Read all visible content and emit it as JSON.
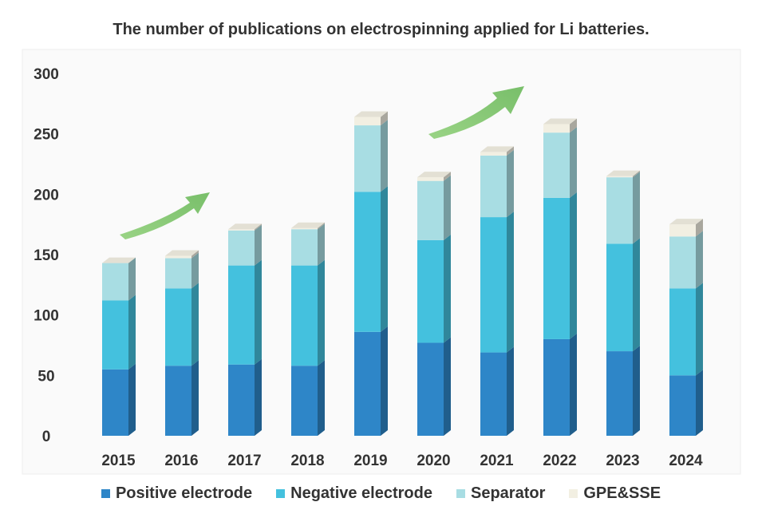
{
  "chart_data": {
    "type": "bar",
    "stacked": true,
    "title": "The number of publications on electrospinning applied for Li batteries.",
    "xlabel": "",
    "ylabel": "",
    "ylim": [
      0,
      300
    ],
    "yticks": [
      "0",
      "50",
      "100",
      "150",
      "200",
      "250",
      "300"
    ],
    "categories": [
      "2015",
      "2016",
      "2017",
      "2018",
      "2019",
      "2020",
      "2021",
      "2022",
      "2023",
      "2024"
    ],
    "series": [
      {
        "name": "Positive electrode",
        "color": "#2e86c8",
        "values": [
          55,
          58,
          59,
          58,
          86,
          77,
          69,
          80,
          70,
          50
        ]
      },
      {
        "name": "Negative electrode",
        "color": "#44c1de",
        "values": [
          57,
          64,
          82,
          83,
          116,
          85,
          112,
          117,
          89,
          72
        ]
      },
      {
        "name": "Separator",
        "color": "#a8dde3",
        "values": [
          31,
          25,
          29,
          30,
          55,
          49,
          51,
          54,
          55,
          43
        ]
      },
      {
        "name": "GPE&SSE",
        "color": "#f2efe2",
        "values": [
          0,
          2,
          1,
          1,
          7,
          3,
          3,
          7,
          1,
          10
        ]
      }
    ],
    "legend_position": "bottom",
    "grid": false,
    "annotations": [
      "green trend arrow (2015-2017)",
      "green trend arrow (2020-2022)"
    ]
  }
}
